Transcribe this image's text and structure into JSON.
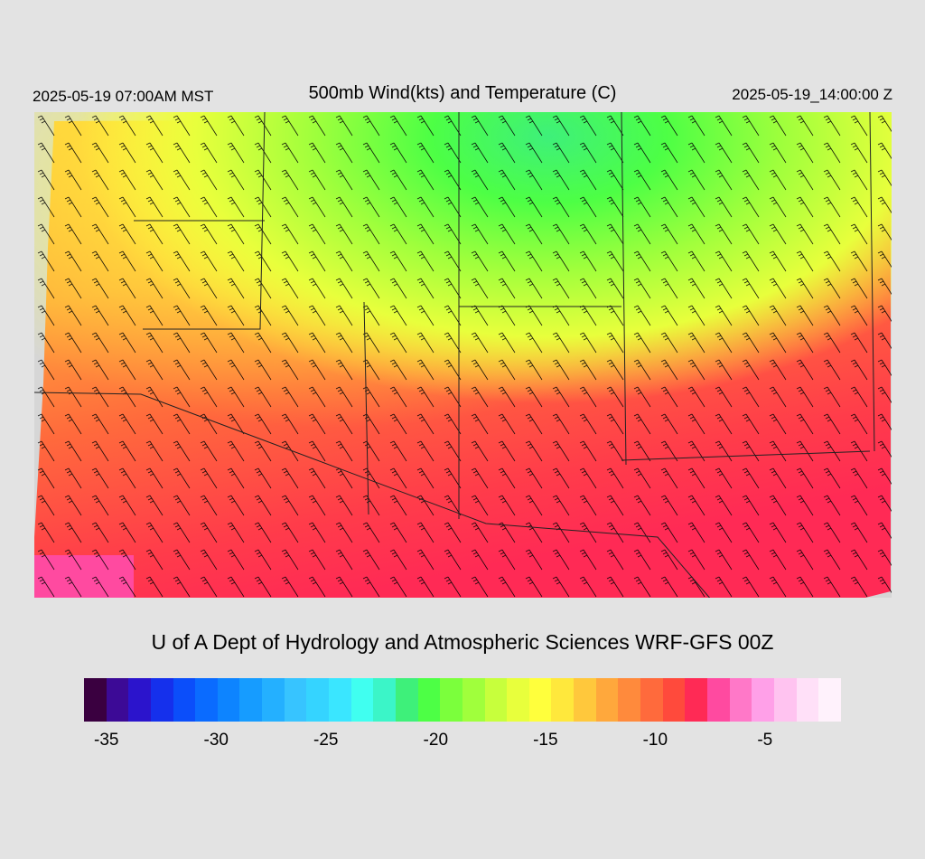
{
  "header": {
    "local_time": "2025-05-19 07:00AM MST",
    "title": "500mb Wind(kts) and Temperature (C)",
    "valid_time": "2025-05-19_14:00:00 Z"
  },
  "credit": "U of A Dept of Hydrology and Atmospheric Sciences WRF-GFS 00Z",
  "colorbar": {
    "colors": [
      "#3a0040",
      "#3c0a96",
      "#2b14cc",
      "#1530ec",
      "#0b4efa",
      "#0a6bff",
      "#0d84ff",
      "#169cff",
      "#24b0ff",
      "#37c4ff",
      "#35d4ff",
      "#3ae6ff",
      "#40fff0",
      "#3bf5c8",
      "#3ef07a",
      "#4dff45",
      "#7bff3c",
      "#a0ff3c",
      "#c7ff3c",
      "#e8ff3c",
      "#ffff3c",
      "#ffe83c",
      "#ffc83c",
      "#ffa83c",
      "#ff8a3c",
      "#ff6a3c",
      "#ff4a3c",
      "#ff2a55",
      "#ff4aa0",
      "#ff78c8",
      "#ffa0e8",
      "#ffc3f0",
      "#ffe0f8",
      "#fff2fc"
    ],
    "labels": [
      "-35",
      "-30",
      "-25",
      "-20",
      "-15",
      "-10",
      "-5"
    ],
    "label_positions_frac": [
      0.02,
      0.165,
      0.31,
      0.455,
      0.6,
      0.745,
      0.89
    ]
  }
}
